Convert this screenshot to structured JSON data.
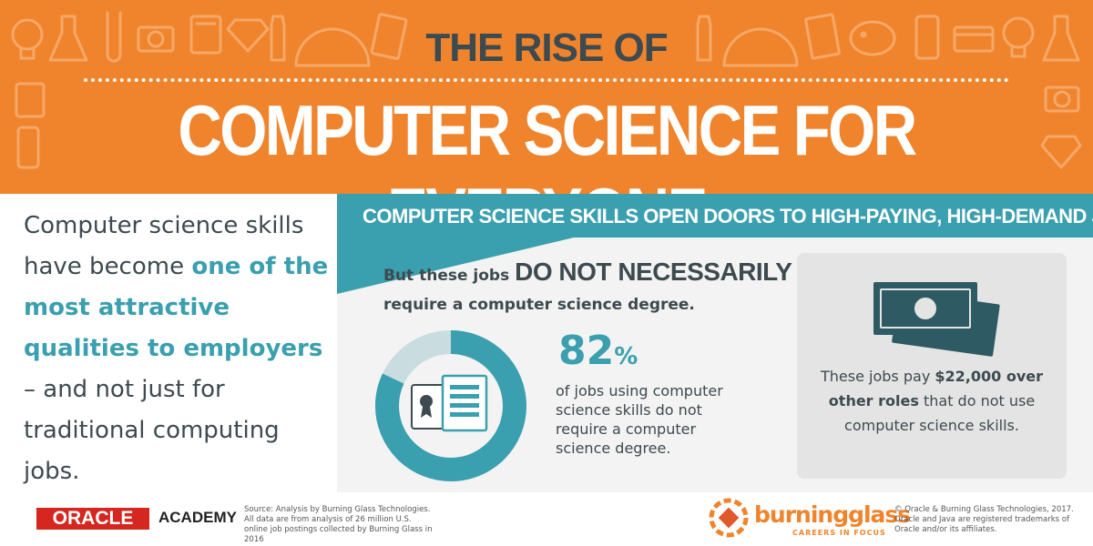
{
  "header": {
    "title_top": "THE RISE OF",
    "title_main": "COMPUTER SCIENCE FOR EVERYONE"
  },
  "intro": {
    "part1": "Computer science skills have become ",
    "highlight": "one of the most attractive qualities to employers",
    "part2": " – and not just for traditional computing jobs."
  },
  "banner": {
    "text": "COMPUTER SCIENCE SKILLS OPEN DOORS TO HIGH-PAYING, HIGH-DEMAND JOBS"
  },
  "statement": {
    "prefix": "But these jobs ",
    "emphasis": "DO NOT NECESSARILY",
    "line2": "require a computer science degree."
  },
  "stat": {
    "value": 82,
    "number": "82",
    "unit": "%",
    "description": "of jobs using computer science skills do not require a computer science degree."
  },
  "pay": {
    "part1": "These jobs pay ",
    "bold": "$22,000 over other roles",
    "part2": " that do not use computer science skills."
  },
  "footer": {
    "oracle": "ORACLE",
    "academy": "ACADEMY",
    "source": "Source: Analysis by Burning Glass Technologies. All data are from analysis of 26 million U.S. online job postings collected by Burning Glass in 2016",
    "brand_name": "burningglass",
    "brand_tagline": "CAREERS IN FOCUS",
    "copyright": "© Oracle & Burning Glass Technologies, 2017. Oracle and Java are registered trademarks of Oracle and/or its affiliates."
  },
  "colors": {
    "orange": "#f0842c",
    "teal": "#3a9fae",
    "dark_text": "#3d4a4f",
    "donut_light": "#c9dde0",
    "panel_bg": "#f3f3f3",
    "card_bg": "#e4e4e4",
    "oracle_red": "#d5261f"
  },
  "icons": [
    "lightbulb-icon",
    "flask-icon",
    "test-tube-icon",
    "camera-icon",
    "calculator-icon",
    "diamond-icon",
    "bottle-icon",
    "protractor-icon",
    "book-icon",
    "piggy-bank-icon",
    "phone-icon",
    "credit-card-icon",
    "money-icon",
    "certificate-icon",
    "document-icon"
  ]
}
